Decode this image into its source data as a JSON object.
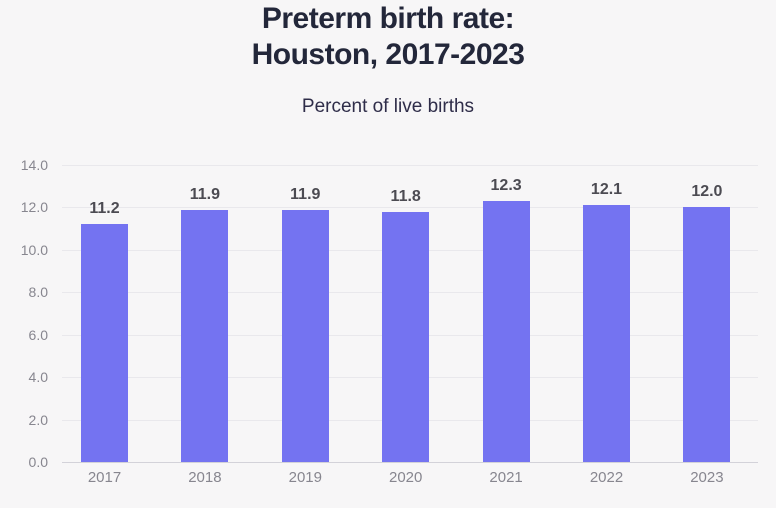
{
  "header": {
    "title_line1": "Preterm birth rate:",
    "title_line2": "Houston, 2017-2023",
    "subtitle": "Percent of live births"
  },
  "colors": {
    "background": "#f7f6f7",
    "bar": "#7473f1",
    "title": "#23273a",
    "subtitle": "#2f2d49",
    "tick_label": "#87868f",
    "data_label": "#4c4b52",
    "gridline": "#e9e8ec",
    "axis_line": "#d3d2d9"
  },
  "chart_data": {
    "type": "bar",
    "title": "Preterm birth rate: Houston, 2017-2023",
    "subtitle": "Percent of live births",
    "categories": [
      "2017",
      "2018",
      "2019",
      "2020",
      "2021",
      "2022",
      "2023"
    ],
    "values": [
      11.2,
      11.9,
      11.9,
      11.8,
      12.3,
      12.1,
      12.0
    ],
    "data_labels": [
      "11.2",
      "11.9",
      "11.9",
      "11.8",
      "12.3",
      "12.1",
      "12.0"
    ],
    "xlabel": "",
    "ylabel": "Percent of live births",
    "ylim": [
      0,
      14
    ],
    "ytick_step": 2,
    "ytick_labels": [
      "0.0",
      "2.0",
      "4.0",
      "6.0",
      "8.0",
      "10.0",
      "12.0",
      "14.0"
    ],
    "grid": true,
    "legend": false
  }
}
